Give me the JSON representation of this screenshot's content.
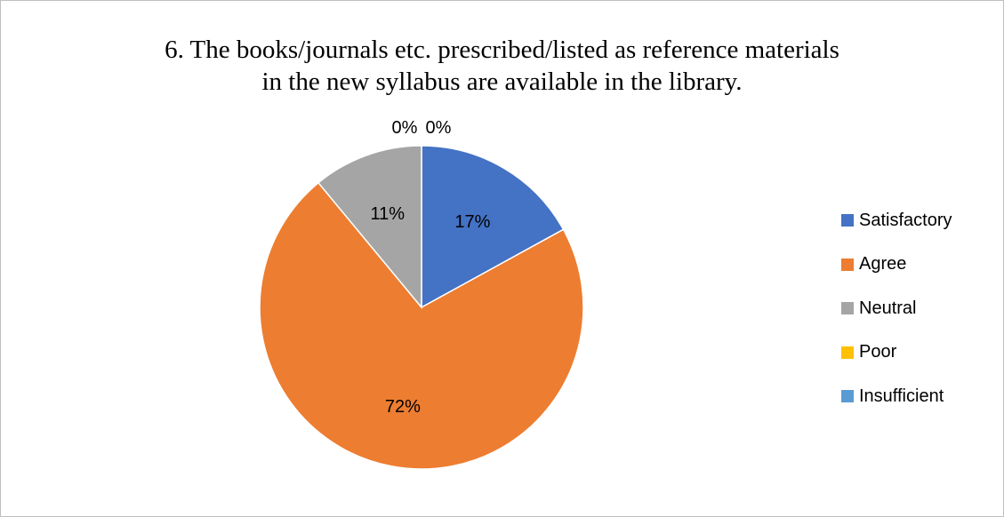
{
  "title_lines": [
    "6. The books/journals etc. prescribed/listed as reference materials",
    "in the new syllabus are available in the library."
  ],
  "chart_data": {
    "type": "pie",
    "title": "6. The books/journals etc. prescribed/listed as reference materials in the new syllabus are available in the library.",
    "categories": [
      "Satisfactory",
      "Agree",
      "Neutral",
      "Poor",
      "Insufficient"
    ],
    "values": [
      17,
      72,
      11,
      0,
      0
    ],
    "labels": [
      "17%",
      "72%",
      "11%",
      "0%",
      "0%"
    ],
    "unit": "%",
    "colors": [
      "#4472c4",
      "#ed7d31",
      "#a5a5a5",
      "#ffc000",
      "#5b9bd5"
    ],
    "legend_position": "right"
  }
}
